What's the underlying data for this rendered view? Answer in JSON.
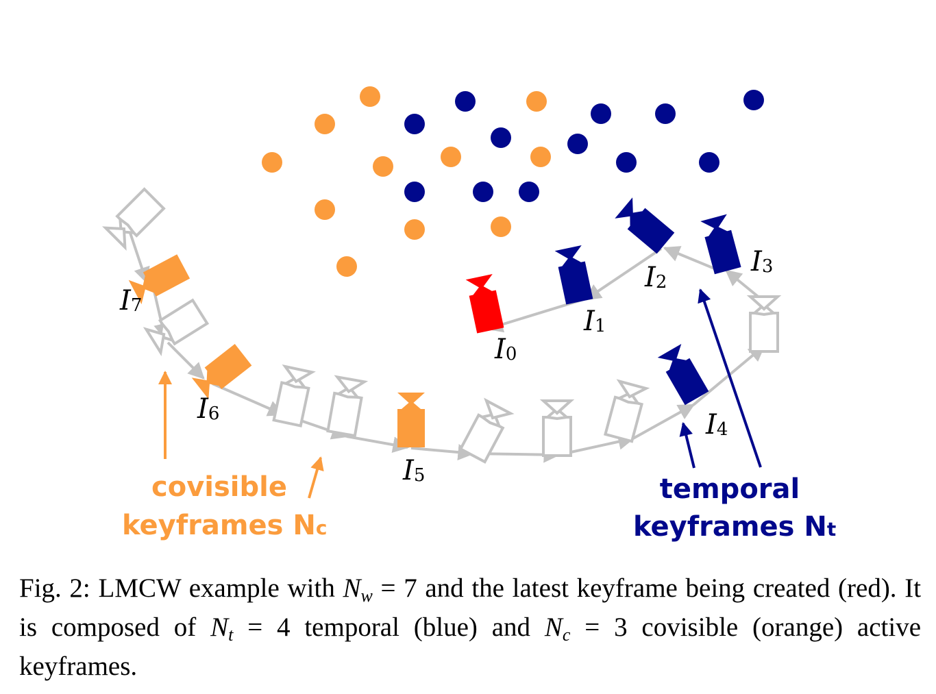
{
  "colors": {
    "orange": "#fb9c3d",
    "blue": "#00088c",
    "red": "#ff0000",
    "gray": "#c2c2c2"
  },
  "figure": {
    "labels": {
      "I0": {
        "main": "I",
        "sub": "0"
      },
      "I1": {
        "main": "I",
        "sub": "1"
      },
      "I2": {
        "main": "I",
        "sub": "2"
      },
      "I3": {
        "main": "I",
        "sub": "3"
      },
      "I4": {
        "main": "I",
        "sub": "4"
      },
      "I5": {
        "main": "I",
        "sub": "5"
      },
      "I6": {
        "main": "I",
        "sub": "6"
      },
      "I7": {
        "main": "I",
        "sub": "7"
      }
    },
    "covisible_label": {
      "line1": "covisible",
      "line2": "keyframes N",
      "sub": "c"
    },
    "temporal_label": {
      "line1": "temporal",
      "line2": "keyframes N",
      "sub": "t"
    }
  },
  "caption": {
    "fig": "Fig. 2:",
    "part1": "LMCW example with",
    "nw_sym": "N",
    "nw_sub": "w",
    "eq1": "=",
    "nw_val": "7",
    "part2": "and the latest keyframe being created (red). It is composed of",
    "nt_sym": "N",
    "nt_sub": "t",
    "eq2": "=",
    "nt_val": "4",
    "part3": "temporal (blue) and",
    "nc_sym": "N",
    "nc_sub": "c",
    "eq3": "=",
    "nc_val": "3",
    "part4": "covisible (orange) active keyframes."
  }
}
